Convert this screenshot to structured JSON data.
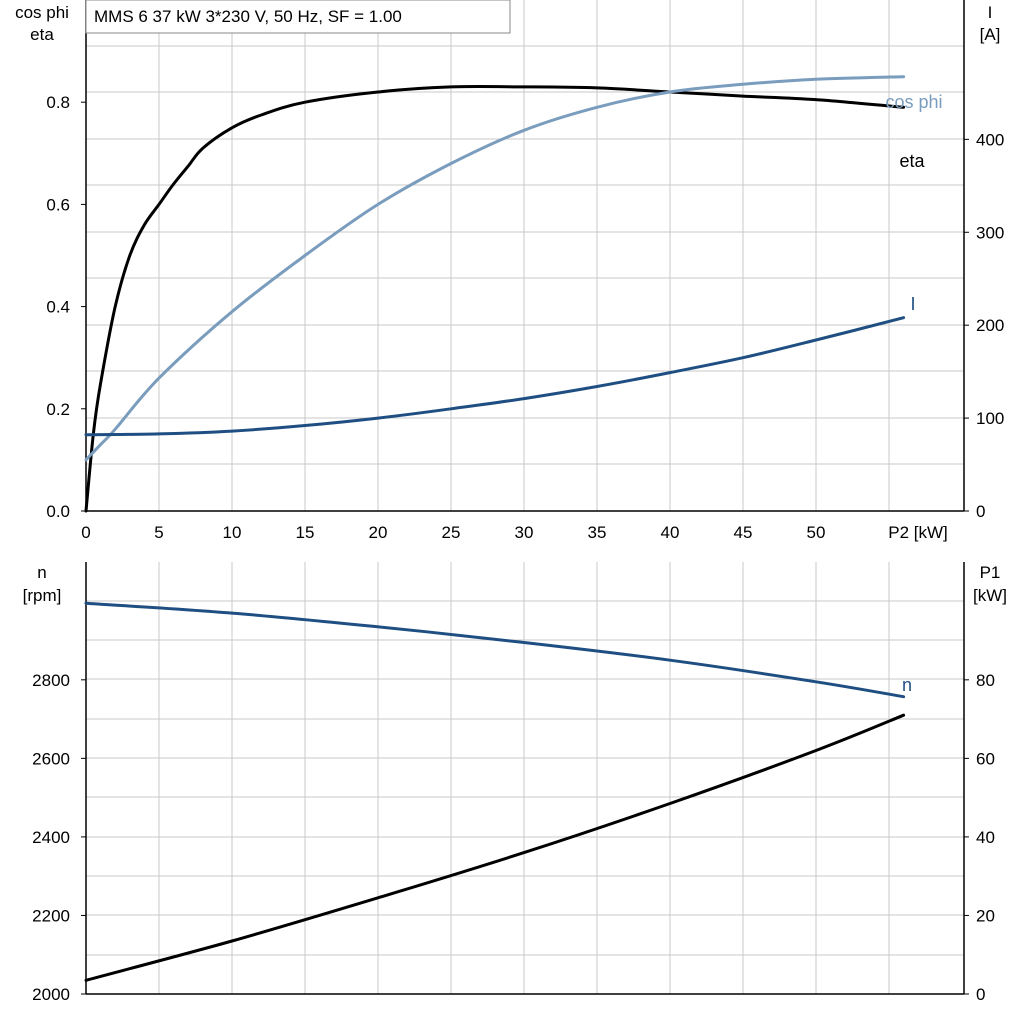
{
  "title": "MMS 6   37 kW   3*230 V, 50 Hz, SF = 1.00",
  "colors": {
    "eta": "#000000",
    "cos_phi": "#7a9cbd",
    "current": "#1f4f82",
    "speed": "#1f4f82",
    "p1": "#000000",
    "grid": "#c8c8c8"
  },
  "chart_data": [
    {
      "type": "line",
      "x_axis_label": "P2 [kW]",
      "x_ticks": [
        0,
        5,
        10,
        15,
        20,
        25,
        30,
        35,
        40,
        45,
        50
      ],
      "left_axis": {
        "label_lines": [
          "cos phi",
          "eta"
        ],
        "ticks": [
          0.0,
          0.2,
          0.4,
          0.6,
          0.8
        ],
        "tick_labels": [
          "0.0",
          "0.2",
          "0.4",
          "0.6",
          "0.8"
        ],
        "range": [
          0,
          1.0
        ]
      },
      "right_axis": {
        "label_lines": [
          "I",
          "[A]"
        ],
        "ticks": [
          0,
          100,
          200,
          300,
          400
        ],
        "tick_labels": [
          "0",
          "100",
          "200",
          "300",
          "400"
        ],
        "range": [
          0,
          550
        ]
      },
      "xlim": [
        0,
        60
      ],
      "series": [
        {
          "name": "eta",
          "axis": "left",
          "x": [
            0,
            0.5,
            1,
            2,
            3,
            4,
            5,
            6,
            7,
            8,
            10,
            12,
            15,
            20,
            25,
            30,
            35,
            40,
            45,
            50,
            56
          ],
          "y": [
            0.0,
            0.15,
            0.25,
            0.4,
            0.5,
            0.56,
            0.6,
            0.64,
            0.675,
            0.71,
            0.75,
            0.775,
            0.8,
            0.82,
            0.83,
            0.83,
            0.828,
            0.82,
            0.812,
            0.805,
            0.79
          ]
        },
        {
          "name": "cos phi",
          "axis": "left",
          "x": [
            0,
            1,
            2,
            5,
            10,
            15,
            20,
            25,
            30,
            35,
            40,
            45,
            50,
            56
          ],
          "y": [
            0.1,
            0.13,
            0.16,
            0.26,
            0.39,
            0.5,
            0.6,
            0.68,
            0.745,
            0.79,
            0.82,
            0.835,
            0.845,
            0.85
          ]
        },
        {
          "name": "I",
          "axis": "right",
          "x": [
            0,
            5,
            10,
            15,
            20,
            25,
            30,
            35,
            40,
            45,
            50,
            56
          ],
          "y": [
            82,
            83,
            86,
            92,
            100,
            110,
            121,
            134,
            149,
            165,
            184,
            208
          ]
        }
      ]
    },
    {
      "type": "line",
      "left_axis": {
        "label_lines": [
          "n",
          "[rpm]"
        ],
        "ticks": [
          2000,
          2200,
          2400,
          2600,
          2800
        ],
        "tick_labels": [
          "2000",
          "2200",
          "2400",
          "2600",
          "2800"
        ],
        "range": [
          2000,
          3100
        ]
      },
      "right_axis": {
        "label_lines": [
          "P1",
          "[kW]"
        ],
        "ticks": [
          0,
          20,
          40,
          60,
          80
        ],
        "tick_labels": [
          "0",
          "20",
          "40",
          "60",
          "80"
        ],
        "range": [
          0,
          110
        ]
      },
      "xlim": [
        0,
        60
      ],
      "series": [
        {
          "name": "n",
          "axis": "left",
          "x": [
            0,
            10,
            20,
            30,
            40,
            50,
            56
          ],
          "y": [
            2995,
            2970,
            2935,
            2895,
            2850,
            2795,
            2757
          ]
        },
        {
          "name": "P1",
          "axis": "right",
          "x": [
            0,
            10,
            20,
            30,
            40,
            50,
            56
          ],
          "y": [
            3.5,
            13.5,
            24.5,
            36,
            48.5,
            62,
            71
          ]
        }
      ]
    }
  ]
}
